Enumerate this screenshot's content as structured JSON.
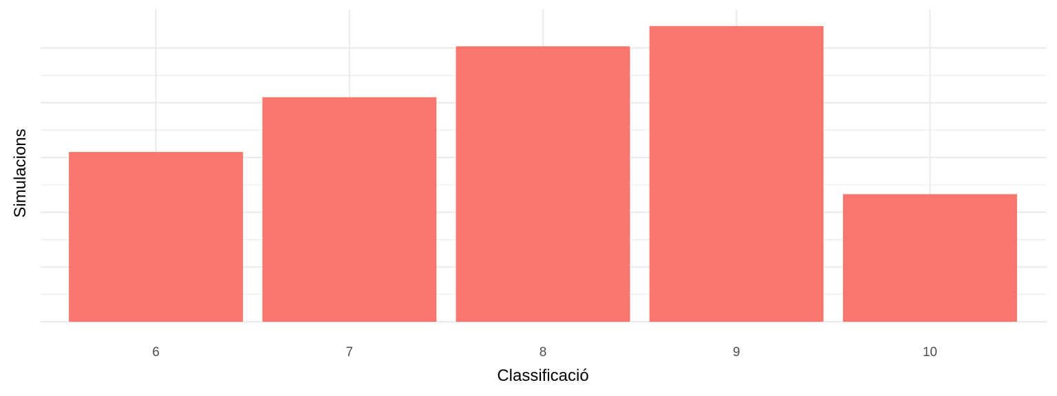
{
  "chart_data": {
    "type": "bar",
    "categories": [
      "6",
      "7",
      "8",
      "9",
      "10"
    ],
    "values": [
      31,
      41,
      50.3,
      54,
      23.3
    ],
    "xlabel": "Classificació",
    "ylabel": "Simulacions",
    "ylim": [
      0,
      57
    ],
    "y_tick_labels_shown": false,
    "grid": true,
    "bar_color": "#F8766D",
    "grid_color": "#EBEBEB"
  }
}
